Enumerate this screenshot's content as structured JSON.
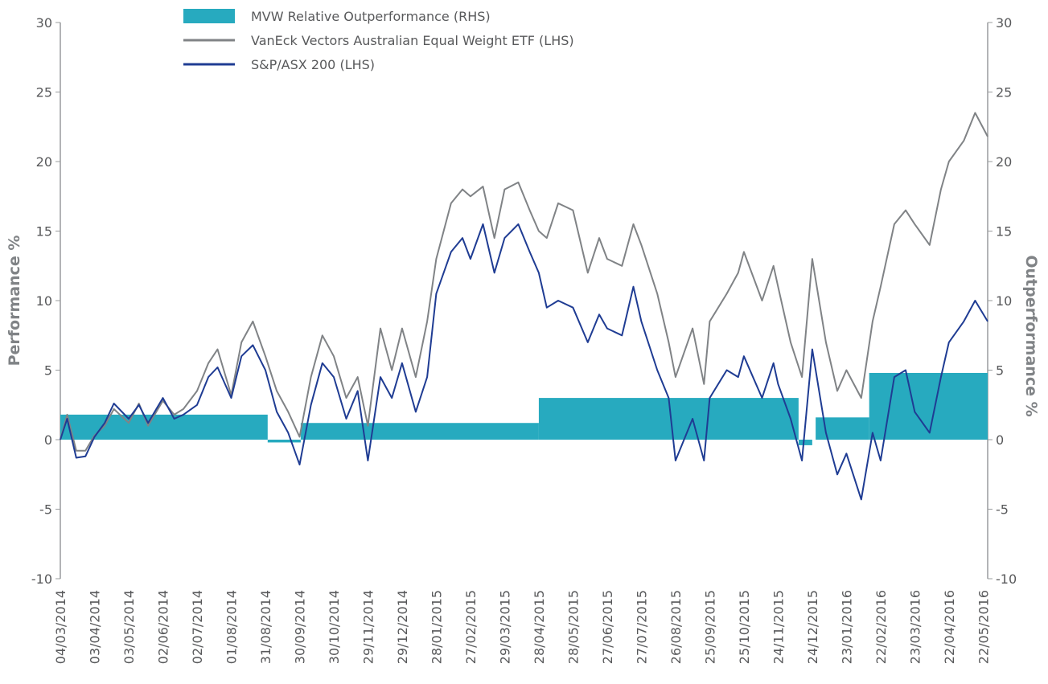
{
  "chart_data": {
    "type": "line",
    "ylabel": "Performance %",
    "y2label": "Outperformance %",
    "ylim": [
      -10,
      30
    ],
    "yticks": [
      -10,
      -5,
      0,
      5,
      10,
      15,
      20,
      25,
      30
    ],
    "y2lim": [
      -10,
      30
    ],
    "y2ticks": [
      -10,
      -5,
      0,
      5,
      10,
      15,
      20,
      25,
      30
    ],
    "xlim": [
      "04/03/2014",
      "26/05/2016"
    ],
    "xticks": [
      "04/03/2014",
      "03/04/2014",
      "03/05/2014",
      "02/06/2014",
      "02/07/2014",
      "01/08/2014",
      "31/08/2014",
      "30/09/2014",
      "30/10/2014",
      "29/11/2014",
      "29/12/2014",
      "28/01/2015",
      "27/02/2015",
      "29/03/2015",
      "28/04/2015",
      "28/05/2015",
      "27/06/2015",
      "27/07/2015",
      "26/08/2015",
      "25/09/2015",
      "25/10/2015",
      "24/11/2015",
      "24/12/2015",
      "23/01/2016",
      "22/02/2016",
      "23/03/2016",
      "22/04/2016",
      "22/05/2016"
    ],
    "series": [
      {
        "name": "MVW Relative Outperformance (RHS)",
        "type": "bar",
        "axis": "y2",
        "color": "#27aabf",
        "x_start": [
          "04/03/2014",
          "02/09/2014",
          "01/10/2014",
          "28/04/2015",
          "12/12/2015",
          "27/12/2015",
          "12/02/2016"
        ],
        "x_end": [
          "02/09/2014",
          "01/10/2014",
          "28/04/2015",
          "12/12/2015",
          "24/12/2015",
          "12/02/2016",
          "26/05/2016"
        ],
        "values": [
          1.8,
          -0.2,
          1.2,
          3.0,
          -0.4,
          1.6,
          4.8
        ]
      },
      {
        "name": "VanEck Vectors Australian Equal Weight ETF (LHS)",
        "type": "line",
        "color": "#808386",
        "x": [
          "04/03/2014",
          "10/03/2014",
          "18/03/2014",
          "26/03/2014",
          "03/04/2014",
          "12/04/2014",
          "20/04/2014",
          "03/05/2014",
          "12/05/2014",
          "20/05/2014",
          "02/06/2014",
          "12/06/2014",
          "20/06/2014",
          "02/07/2014",
          "12/07/2014",
          "20/07/2014",
          "01/08/2014",
          "10/08/2014",
          "20/08/2014",
          "31/08/2014",
          "10/09/2014",
          "20/09/2014",
          "30/09/2014",
          "10/10/2014",
          "20/10/2014",
          "30/10/2014",
          "10/11/2014",
          "20/11/2014",
          "29/11/2014",
          "10/12/2014",
          "20/12/2014",
          "29/12/2014",
          "10/01/2015",
          "20/01/2015",
          "28/01/2015",
          "10/02/2015",
          "20/02/2015",
          "27/02/2015",
          "10/03/2015",
          "20/03/2015",
          "29/03/2015",
          "10/04/2015",
          "20/04/2015",
          "28/04/2015",
          "05/05/2015",
          "15/05/2015",
          "28/05/2015",
          "10/06/2015",
          "20/06/2015",
          "27/06/2015",
          "10/07/2015",
          "20/07/2015",
          "27/07/2015",
          "10/08/2015",
          "20/08/2015",
          "26/08/2015",
          "10/09/2015",
          "20/09/2015",
          "25/09/2015",
          "10/10/2015",
          "20/10/2015",
          "25/10/2015",
          "10/11/2015",
          "20/11/2015",
          "24/11/2015",
          "05/12/2015",
          "15/12/2015",
          "24/12/2015",
          "05/01/2016",
          "15/01/2016",
          "23/01/2016",
          "05/02/2016",
          "15/02/2016",
          "22/02/2016",
          "05/03/2016",
          "15/03/2016",
          "23/03/2016",
          "05/04/2016",
          "15/04/2016",
          "22/04/2016",
          "05/05/2016",
          "15/05/2016",
          "26/05/2016"
        ],
        "values": [
          0,
          1.8,
          -0.8,
          -0.8,
          0.3,
          1.0,
          2.2,
          1.2,
          2.6,
          1.0,
          2.8,
          1.8,
          2.2,
          3.5,
          5.5,
          6.5,
          3.2,
          7.0,
          8.5,
          6.0,
          3.5,
          2.0,
          0.2,
          4.5,
          7.5,
          6.0,
          3.0,
          4.5,
          1.0,
          8.0,
          5.0,
          8.0,
          4.5,
          8.5,
          13.0,
          17.0,
          18.0,
          17.5,
          18.2,
          14.5,
          18.0,
          18.5,
          16.5,
          15.0,
          14.5,
          17.0,
          16.5,
          12.0,
          14.5,
          13.0,
          12.5,
          15.5,
          14.0,
          10.5,
          7.0,
          4.5,
          8.0,
          4.0,
          8.5,
          10.5,
          12.0,
          13.5,
          10.0,
          12.5,
          11.0,
          7.0,
          4.5,
          13.0,
          7.0,
          3.5,
          5.0,
          3.0,
          8.5,
          11.0,
          15.5,
          16.5,
          15.5,
          14.0,
          18.0,
          20.0,
          21.5,
          23.5,
          21.8
        ]
      },
      {
        "name": "S&P/ASX 200 (LHS)",
        "type": "line",
        "color": "#1f3c93",
        "x": [
          "04/03/2014",
          "10/03/2014",
          "18/03/2014",
          "26/03/2014",
          "03/04/2014",
          "12/04/2014",
          "20/04/2014",
          "03/05/2014",
          "12/05/2014",
          "20/05/2014",
          "02/06/2014",
          "12/06/2014",
          "20/06/2014",
          "02/07/2014",
          "12/07/2014",
          "20/07/2014",
          "01/08/2014",
          "10/08/2014",
          "20/08/2014",
          "31/08/2014",
          "10/09/2014",
          "20/09/2014",
          "30/09/2014",
          "10/10/2014",
          "20/10/2014",
          "30/10/2014",
          "10/11/2014",
          "20/11/2014",
          "29/11/2014",
          "10/12/2014",
          "20/12/2014",
          "29/12/2014",
          "10/01/2015",
          "20/01/2015",
          "28/01/2015",
          "10/02/2015",
          "20/02/2015",
          "27/02/2015",
          "10/03/2015",
          "20/03/2015",
          "29/03/2015",
          "10/04/2015",
          "20/04/2015",
          "28/04/2015",
          "05/05/2015",
          "15/05/2015",
          "28/05/2015",
          "10/06/2015",
          "20/06/2015",
          "27/06/2015",
          "10/07/2015",
          "20/07/2015",
          "27/07/2015",
          "10/08/2015",
          "20/08/2015",
          "26/08/2015",
          "10/09/2015",
          "20/09/2015",
          "25/09/2015",
          "10/10/2015",
          "20/10/2015",
          "25/10/2015",
          "10/11/2015",
          "20/11/2015",
          "24/11/2015",
          "05/12/2015",
          "15/12/2015",
          "24/12/2015",
          "05/01/2016",
          "15/01/2016",
          "23/01/2016",
          "05/02/2016",
          "15/02/2016",
          "22/02/2016",
          "05/03/2016",
          "15/03/2016",
          "23/03/2016",
          "05/04/2016",
          "15/04/2016",
          "22/04/2016",
          "05/05/2016",
          "15/05/2016",
          "26/05/2016"
        ],
        "values": [
          0,
          1.5,
          -1.3,
          -1.2,
          0.2,
          1.2,
          2.6,
          1.5,
          2.5,
          1.2,
          3.0,
          1.5,
          1.8,
          2.5,
          4.5,
          5.2,
          3.0,
          6.0,
          6.8,
          5.0,
          2.0,
          0.5,
          -1.8,
          2.5,
          5.5,
          4.5,
          1.5,
          3.5,
          -1.5,
          4.5,
          3.0,
          5.5,
          2.0,
          4.5,
          10.5,
          13.5,
          14.5,
          13.0,
          15.5,
          12.0,
          14.5,
          15.5,
          13.5,
          12.0,
          9.5,
          10.0,
          9.5,
          7.0,
          9.0,
          8.0,
          7.5,
          11.0,
          8.5,
          5.0,
          3.0,
          -1.5,
          1.5,
          -1.5,
          3.0,
          5.0,
          4.5,
          6.0,
          3.0,
          5.5,
          4.0,
          1.5,
          -1.5,
          6.5,
          0.5,
          -2.5,
          -1.0,
          -4.3,
          0.5,
          -1.5,
          4.5,
          5.0,
          2.0,
          0.5,
          4.5,
          7.0,
          8.5,
          10.0,
          8.5
        ]
      }
    ]
  }
}
